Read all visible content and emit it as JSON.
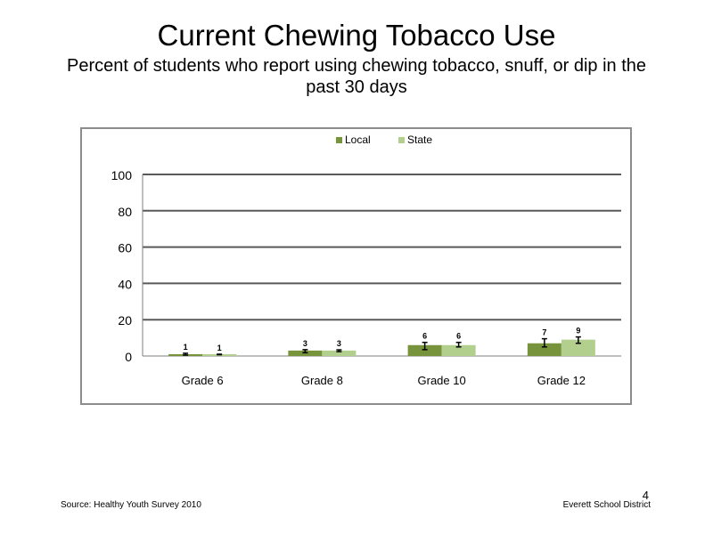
{
  "slide": {
    "title": "Current Chewing Tobacco Use",
    "subtitle": "Percent of students who report using chewing tobacco, snuff, or dip in the past 30 days",
    "source": "Source: Healthy Youth Survey 2010",
    "organization": "Everett School District",
    "page_number": "4"
  },
  "chart_data": {
    "type": "bar",
    "title": "",
    "xlabel": "",
    "ylabel": "",
    "categories": [
      "Grade 6",
      "Grade 8",
      "Grade 10",
      "Grade 12"
    ],
    "series": [
      {
        "name": "Local",
        "color": "#77933c",
        "values": [
          1,
          3,
          6,
          7
        ],
        "labels": [
          "1",
          "3",
          "6",
          "7"
        ],
        "error_low": [
          0.5,
          1.8,
          3.5,
          5.0
        ],
        "error_high": [
          1.5,
          3.5,
          7.5,
          9.5
        ]
      },
      {
        "name": "State",
        "color": "#b3cf8e",
        "values": [
          1,
          3,
          6,
          9
        ],
        "labels": [
          "1",
          "3",
          "6",
          "9"
        ],
        "error_low": [
          0.7,
          2.4,
          5.0,
          7.0
        ],
        "error_high": [
          1.0,
          3.4,
          7.5,
          10.5
        ]
      }
    ],
    "ylim": [
      0,
      100
    ],
    "yticks": [
      0,
      20,
      40,
      60,
      80,
      100
    ],
    "grid": true,
    "legend_position": "top"
  }
}
